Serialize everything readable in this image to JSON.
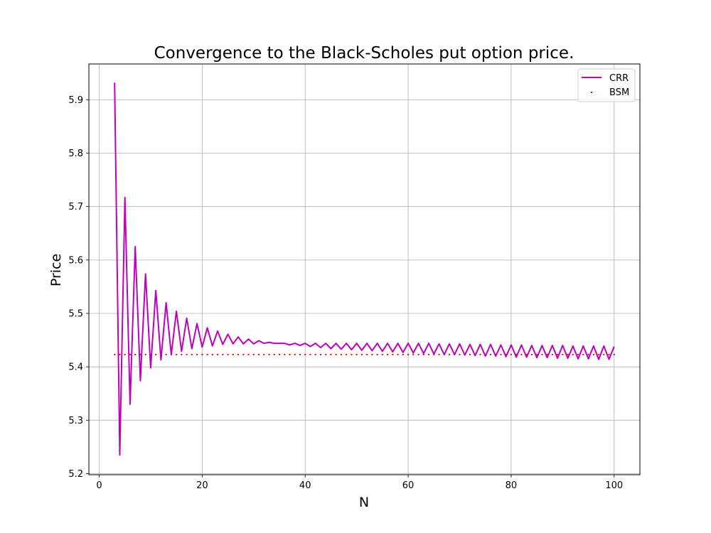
{
  "chart_data": {
    "type": "line",
    "title": "Convergence to the Black-Scholes put option price.",
    "xlabel": "N",
    "ylabel": "Price",
    "xlim": [
      -2,
      105
    ],
    "ylim": [
      5.198,
      5.967
    ],
    "xticks": [
      0,
      20,
      40,
      60,
      80,
      100
    ],
    "yticks": [
      5.2,
      5.3,
      5.4,
      5.5,
      5.6,
      5.7,
      5.8,
      5.9
    ],
    "xtick_labels": [
      "0",
      "20",
      "40",
      "60",
      "80",
      "100"
    ],
    "ytick_labels": [
      "5.2",
      "5.3",
      "5.4",
      "5.5",
      "5.6",
      "5.7",
      "5.8",
      "5.9"
    ],
    "grid": true,
    "legend_position": "top-right",
    "series": [
      {
        "name": "CRR",
        "style": "line",
        "color": "#bf00bf",
        "x": [
          3,
          4,
          5,
          6,
          7,
          8,
          9,
          10,
          11,
          12,
          13,
          14,
          15,
          16,
          17,
          18,
          19,
          20,
          21,
          22,
          23,
          24,
          25,
          26,
          27,
          28,
          29,
          30,
          31,
          32,
          33,
          34,
          35,
          36,
          37,
          38,
          39,
          40,
          41,
          42,
          43,
          44,
          45,
          46,
          47,
          48,
          49,
          50,
          51,
          52,
          53,
          54,
          55,
          56,
          57,
          58,
          59,
          60,
          61,
          62,
          63,
          64,
          65,
          66,
          67,
          68,
          69,
          70,
          71,
          72,
          73,
          74,
          75,
          76,
          77,
          78,
          79,
          80,
          81,
          82,
          83,
          84,
          85,
          86,
          87,
          88,
          89,
          90,
          91,
          92,
          93,
          94,
          95,
          96,
          97,
          98,
          99,
          100
        ],
        "y": [
          5.932,
          5.235,
          5.717,
          5.33,
          5.625,
          5.374,
          5.574,
          5.398,
          5.543,
          5.413,
          5.52,
          5.423,
          5.504,
          5.429,
          5.491,
          5.434,
          5.481,
          5.437,
          5.473,
          5.439,
          5.467,
          5.442,
          5.461,
          5.443,
          5.456,
          5.443,
          5.452,
          5.443,
          5.449,
          5.444,
          5.446,
          5.444,
          5.444,
          5.444,
          5.441,
          5.444,
          5.44,
          5.444,
          5.438,
          5.444,
          5.436,
          5.444,
          5.434,
          5.444,
          5.433,
          5.444,
          5.432,
          5.444,
          5.431,
          5.444,
          5.43,
          5.444,
          5.429,
          5.444,
          5.428,
          5.444,
          5.427,
          5.444,
          5.426,
          5.444,
          5.425,
          5.444,
          5.424,
          5.443,
          5.423,
          5.443,
          5.423,
          5.443,
          5.422,
          5.442,
          5.421,
          5.442,
          5.42,
          5.442,
          5.42,
          5.441,
          5.419,
          5.441,
          5.418,
          5.441,
          5.418,
          5.44,
          5.417,
          5.44,
          5.417,
          5.44,
          5.416,
          5.44,
          5.416,
          5.439,
          5.415,
          5.439,
          5.415,
          5.439,
          5.414,
          5.439,
          5.414,
          5.438
        ]
      },
      {
        "name": "BSM",
        "style": "scatter",
        "color": "#ff0000",
        "x": [
          3,
          4,
          5,
          6,
          7,
          8,
          9,
          10,
          11,
          12,
          13,
          14,
          15,
          16,
          17,
          18,
          19,
          20,
          21,
          22,
          23,
          24,
          25,
          26,
          27,
          28,
          29,
          30,
          31,
          32,
          33,
          34,
          35,
          36,
          37,
          38,
          39,
          40,
          41,
          42,
          43,
          44,
          45,
          46,
          47,
          48,
          49,
          50,
          51,
          52,
          53,
          54,
          55,
          56,
          57,
          58,
          59,
          60,
          61,
          62,
          63,
          64,
          65,
          66,
          67,
          68,
          69,
          70,
          71,
          72,
          73,
          74,
          75,
          76,
          77,
          78,
          79,
          80,
          81,
          82,
          83,
          84,
          85,
          86,
          87,
          88,
          89,
          90,
          91,
          92,
          93,
          94,
          95,
          96,
          97,
          98,
          99,
          100
        ],
        "y_constant": 5.423
      }
    ]
  }
}
